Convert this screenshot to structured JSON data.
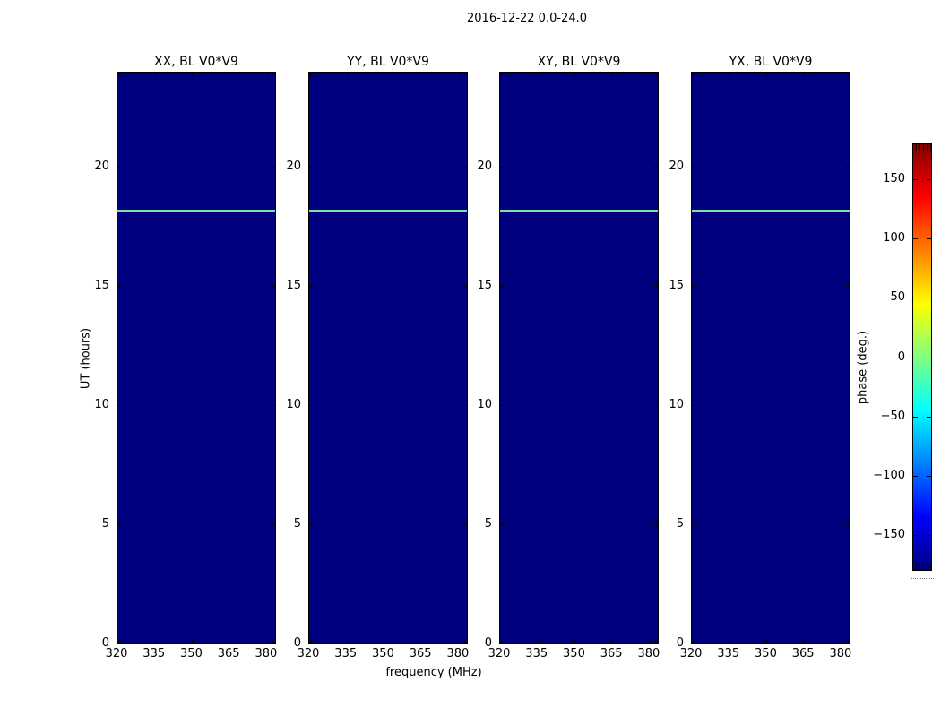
{
  "title": "2016-12-22 0.0-24.0",
  "chart_data": {
    "type": "heatmap",
    "xlabel": "frequency (MHz)",
    "ylabel": "UT (hours)",
    "x_ticks": [
      320,
      335,
      350,
      365,
      380
    ],
    "x_range": [
      320,
      384
    ],
    "y_ticks": [
      0,
      5,
      10,
      15,
      20
    ],
    "y_range": [
      0,
      24
    ],
    "panels": [
      {
        "title": "XX, BL V0*V9"
      },
      {
        "title": "YY, BL V0*V9"
      },
      {
        "title": "XY, BL V0*V9"
      },
      {
        "title": "YX, BL V0*V9"
      }
    ],
    "background_value_deg": -180,
    "background_color": "#00007f",
    "feature_line": {
      "ut_hours": 18.2,
      "phase_deg": 20,
      "color": "#74e89c"
    },
    "colorbar": {
      "label": "phase (deg.)",
      "ticks": [
        150,
        100,
        50,
        0,
        -50,
        -100,
        -150
      ],
      "range": [
        -180,
        180
      ],
      "colormap": "jet",
      "gradient_stops": [
        {
          "pos": 0.0,
          "color": "#00007f"
        },
        {
          "pos": 0.125,
          "color": "#0000ff"
        },
        {
          "pos": 0.375,
          "color": "#00ffff"
        },
        {
          "pos": 0.625,
          "color": "#ffff00"
        },
        {
          "pos": 0.875,
          "color": "#ff0000"
        },
        {
          "pos": 1.0,
          "color": "#7f0000"
        }
      ]
    }
  }
}
